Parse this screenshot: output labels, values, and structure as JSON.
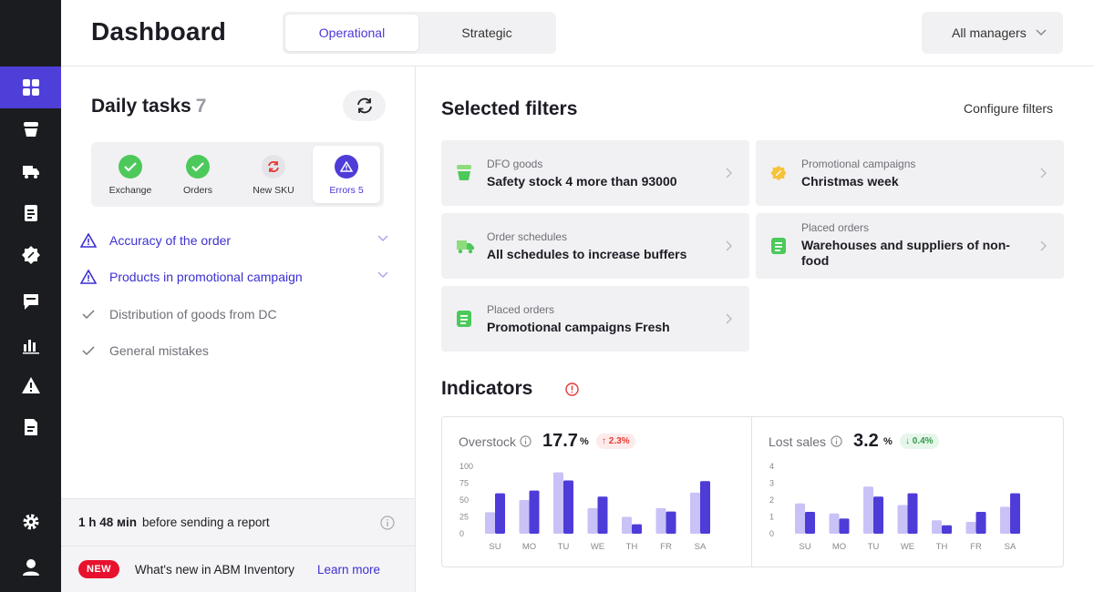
{
  "header": {
    "title": "Dashboard",
    "tabs": [
      {
        "label": "Operational",
        "active": true
      },
      {
        "label": "Strategic",
        "active": false
      }
    ],
    "manager_filter": "All managers"
  },
  "sidebar": {
    "items": [
      {
        "icon": "logo-placeholder"
      },
      {
        "icon": "dashboard-grid-icon",
        "active": true
      },
      {
        "icon": "cup-icon"
      },
      {
        "icon": "truck-icon"
      },
      {
        "icon": "document-icon"
      },
      {
        "icon": "discount-badge-icon"
      },
      {
        "icon": "message-icon"
      },
      {
        "icon": "bar-chart-icon"
      },
      {
        "icon": "warning-icon"
      },
      {
        "icon": "report-icon"
      },
      {
        "icon": "gear-icon"
      },
      {
        "icon": "user-icon"
      }
    ],
    "active_color": "#4f3fd9"
  },
  "daily_tasks": {
    "title": "Daily tasks",
    "count": "7",
    "tabs": [
      {
        "label": "Exchange",
        "status": "ok"
      },
      {
        "label": "Orders",
        "status": "ok"
      },
      {
        "label": "New SKU",
        "status": "sync"
      },
      {
        "label": "Errors 5",
        "status": "error",
        "active": true
      }
    ],
    "issues": [
      {
        "label": "Accuracy of the order",
        "type": "warning"
      },
      {
        "label": "Products in promotional campaign",
        "type": "warning"
      },
      {
        "label": "Distribution of goods from DC",
        "type": "done"
      },
      {
        "label": "General mistakes",
        "type": "done"
      }
    ],
    "report": {
      "time": "1 h 48 мin",
      "text": "before sending a report"
    },
    "news": {
      "badge": "NEW",
      "text": "What's new in ABM Inventory",
      "link": "Learn more"
    }
  },
  "filters": {
    "title": "Selected filters",
    "configure": "Configure filters",
    "cards": [
      {
        "category": "DFO goods",
        "value": "Safety stock 4 more than 93000",
        "icon": "cup-icon"
      },
      {
        "category": "Promotional campaigns",
        "value": "Christmas week",
        "icon": "discount-badge-icon"
      },
      {
        "category": "Order schedules",
        "value": "All schedules to increase buffers",
        "icon": "truck-icon"
      },
      {
        "category": "Placed orders",
        "value": "Warehouses and suppliers of non-food",
        "icon": "document-icon"
      },
      {
        "category": "Placed orders",
        "value": "Promotional campaigns Fresh",
        "icon": "document-icon"
      }
    ]
  },
  "indicators": {
    "title": "Indicators",
    "colors": {
      "light": "#c9c2f7",
      "dark": "#4e3cd8",
      "alert": "#e53935"
    },
    "kpis": [
      {
        "name": "Overstock",
        "value": "17.7",
        "unit": "%",
        "delta": "↑ 2.3%",
        "trend": "up"
      },
      {
        "name": "Lost sales",
        "value": "3.2",
        "unit": "%",
        "delta": "↓ 0.4%",
        "trend": "down"
      }
    ]
  },
  "chart_data": [
    {
      "type": "bar",
      "categories": [
        "SU",
        "MO",
        "TU",
        "WE",
        "TH",
        "FR",
        "SA"
      ],
      "yticks": [
        "100",
        "75",
        "50",
        "25",
        "0"
      ],
      "ylim": [
        0,
        100
      ],
      "series": [
        {
          "values": [
            32,
            50,
            91,
            38,
            25,
            38,
            61
          ]
        },
        {
          "values": [
            60,
            64,
            79,
            55,
            14,
            33,
            78
          ]
        }
      ]
    },
    {
      "type": "bar",
      "categories": [
        "SU",
        "MO",
        "TU",
        "WE",
        "TH",
        "FR",
        "SA"
      ],
      "yticks": [
        "4",
        "3",
        "2",
        "1",
        "0"
      ],
      "ylim": [
        0,
        4
      ],
      "series": [
        {
          "values": [
            1.8,
            1.2,
            2.8,
            1.7,
            0.8,
            0.7,
            1.6
          ]
        },
        {
          "values": [
            1.3,
            0.9,
            2.2,
            2.4,
            0.5,
            1.3,
            2.4
          ]
        }
      ]
    }
  ]
}
